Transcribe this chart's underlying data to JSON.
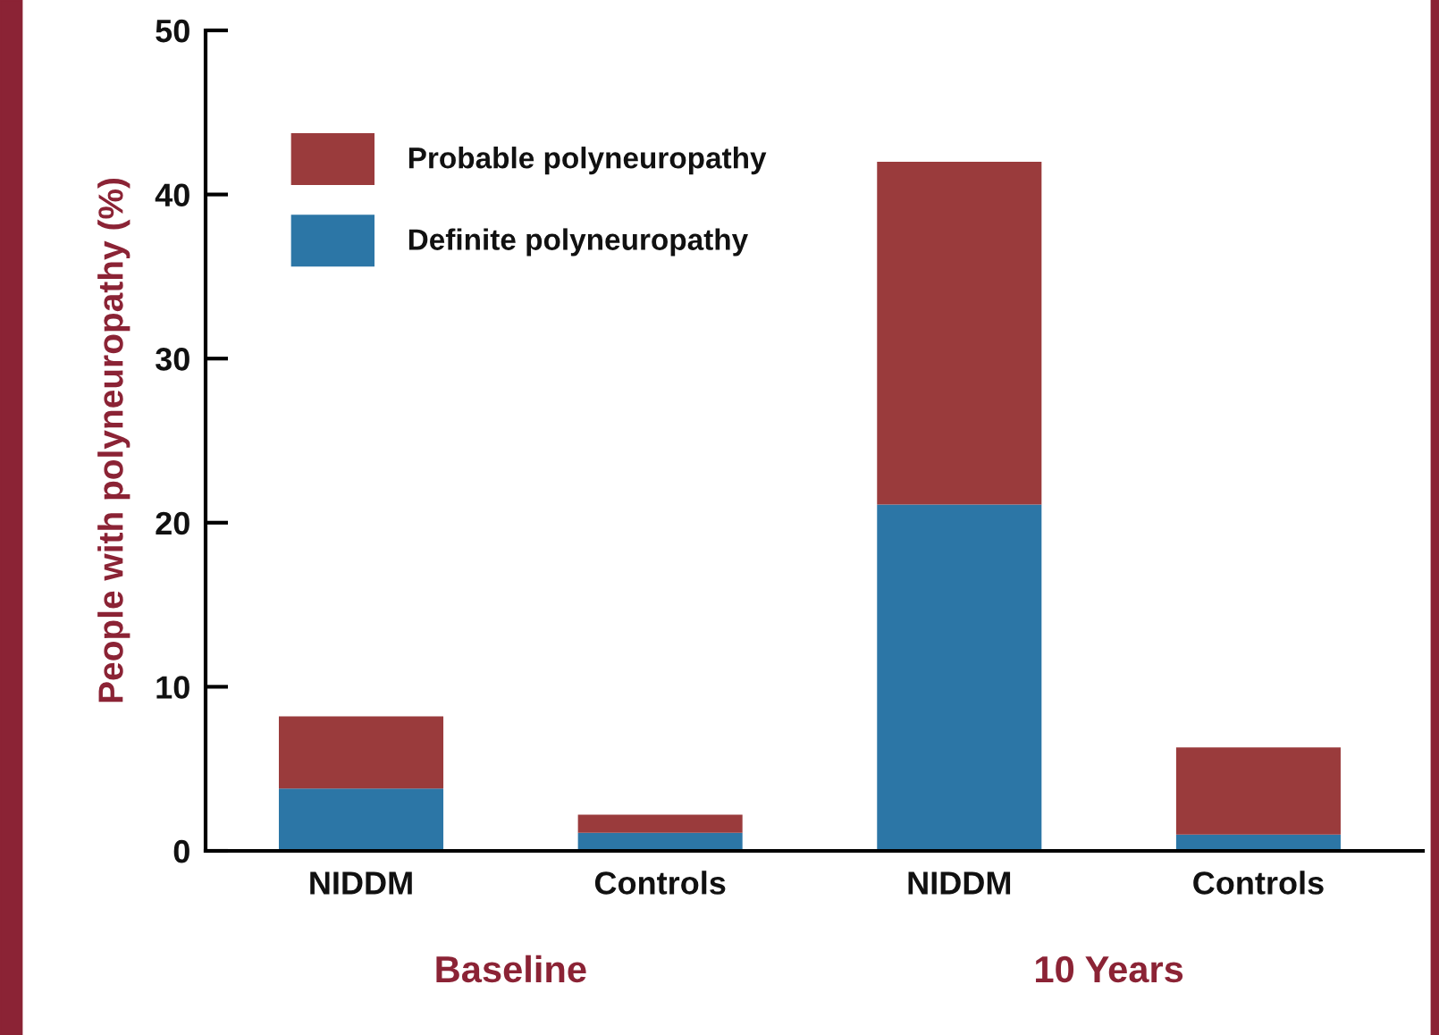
{
  "chart_data": {
    "type": "bar",
    "stacked": true,
    "ylabel": "People with polyneuropathy (%)",
    "categories": [
      "NIDDM",
      "Controls",
      "NIDDM",
      "Controls"
    ],
    "series": [
      {
        "name": "Definite polyneuropathy",
        "color": "#2c76a6",
        "values": [
          3.8,
          1.1,
          21.1,
          1.0
        ]
      },
      {
        "name": "Probable polyneuropathy",
        "color": "#9a3b3c",
        "values": [
          4.4,
          1.1,
          20.9,
          5.3
        ]
      }
    ],
    "annotations": [
      "Baseline",
      "10 Years"
    ],
    "ylim": [
      0,
      50
    ],
    "yticks": [
      0,
      10,
      20,
      30,
      40,
      50
    ],
    "grid": false,
    "legend": "top left"
  }
}
